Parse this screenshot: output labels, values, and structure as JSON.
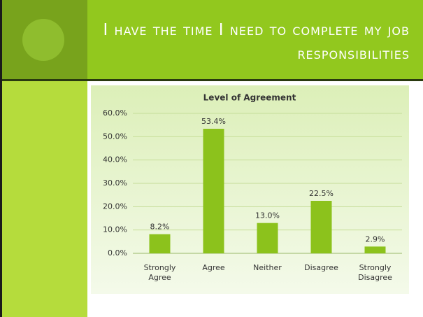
{
  "slide_title": "I have the time I need to complete my job responsibilities",
  "chart_data": {
    "type": "bar",
    "title": "Level of Agreement",
    "categories": [
      "Strongly Agree",
      "Agree",
      "Neither",
      "Disagree",
      "Strongly Disagree"
    ],
    "values": [
      8.2,
      53.4,
      13.0,
      22.5,
      2.9
    ],
    "value_labels": [
      "8.2%",
      "53.4%",
      "13.0%",
      "22.5%",
      "2.9%"
    ],
    "color": "#8cc21c",
    "ylim": [
      0,
      60
    ],
    "yticks": [
      {
        "value": 0,
        "label": "0.0%"
      },
      {
        "value": 10,
        "label": "10.0%"
      },
      {
        "value": 20,
        "label": "20.0%"
      },
      {
        "value": 30,
        "label": "30.0%"
      },
      {
        "value": 40,
        "label": "40.0%"
      },
      {
        "value": 50,
        "label": "50.0%"
      },
      {
        "value": 60,
        "label": "60.0%"
      }
    ],
    "grid": true
  }
}
